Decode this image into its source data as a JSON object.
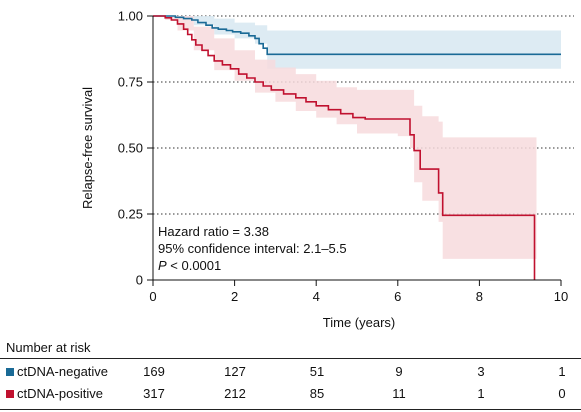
{
  "chart_data": {
    "type": "line",
    "subtype": "kaplan-meier step curves with confidence bands",
    "xlabel": "Time (years)",
    "ylabel": "Relapse-free survival",
    "xlim": [
      0,
      10
    ],
    "ylim": [
      0,
      1
    ],
    "x_ticks": [
      "0",
      "2",
      "4",
      "6",
      "8",
      "10"
    ],
    "y_ticks": [
      "0",
      "0.25",
      "0.50",
      "0.75",
      "1.00"
    ],
    "grid": "horizontal dotted",
    "annotation": {
      "line1": "Hazard ratio = 3.38",
      "line2": "95% confidence interval: 2.1–5.5",
      "line3_italic": "P",
      "line3_rest": " < 0.0001"
    },
    "series": [
      {
        "name": "ctDNA-negative",
        "color": "#1a6a96",
        "band_color": "#d7e8f1",
        "points": [
          [
            0,
            1.0
          ],
          [
            0.55,
            1.0
          ],
          [
            0.55,
            0.995
          ],
          [
            0.75,
            0.995
          ],
          [
            0.75,
            0.99
          ],
          [
            0.95,
            0.99
          ],
          [
            0.95,
            0.985
          ],
          [
            1.1,
            0.985
          ],
          [
            1.1,
            0.975
          ],
          [
            1.3,
            0.975
          ],
          [
            1.3,
            0.965
          ],
          [
            1.45,
            0.965
          ],
          [
            1.45,
            0.955
          ],
          [
            1.6,
            0.955
          ],
          [
            1.6,
            0.95
          ],
          [
            1.8,
            0.95
          ],
          [
            1.8,
            0.945
          ],
          [
            1.95,
            0.945
          ],
          [
            1.95,
            0.94
          ],
          [
            2.15,
            0.94
          ],
          [
            2.15,
            0.935
          ],
          [
            2.35,
            0.935
          ],
          [
            2.35,
            0.925
          ],
          [
            2.5,
            0.925
          ],
          [
            2.5,
            0.915
          ],
          [
            2.6,
            0.915
          ],
          [
            2.6,
            0.895
          ],
          [
            2.7,
            0.895
          ],
          [
            2.7,
            0.878
          ],
          [
            2.8,
            0.878
          ],
          [
            2.8,
            0.855
          ],
          [
            10.0,
            0.855
          ]
        ],
        "ci_upper": [
          [
            0,
            1.0
          ],
          [
            1.0,
            1.0
          ],
          [
            1.5,
            0.99
          ],
          [
            2.0,
            0.975
          ],
          [
            2.5,
            0.965
          ],
          [
            2.8,
            0.945
          ],
          [
            10.0,
            0.945
          ]
        ],
        "ci_lower": [
          [
            0,
            1.0
          ],
          [
            0.6,
            0.99
          ],
          [
            1.0,
            0.965
          ],
          [
            1.5,
            0.93
          ],
          [
            2.0,
            0.915
          ],
          [
            2.5,
            0.895
          ],
          [
            2.8,
            0.8
          ],
          [
            10.0,
            0.8
          ]
        ]
      },
      {
        "name": "ctDNA-positive",
        "color": "#c0112f",
        "band_color": "#f7dadd",
        "points": [
          [
            0,
            1.0
          ],
          [
            0.3,
            1.0
          ],
          [
            0.3,
            0.993
          ],
          [
            0.45,
            0.993
          ],
          [
            0.45,
            0.985
          ],
          [
            0.6,
            0.985
          ],
          [
            0.6,
            0.97
          ],
          [
            0.75,
            0.97
          ],
          [
            0.75,
            0.95
          ],
          [
            0.85,
            0.95
          ],
          [
            0.85,
            0.93
          ],
          [
            0.95,
            0.93
          ],
          [
            0.95,
            0.91
          ],
          [
            1.05,
            0.91
          ],
          [
            1.05,
            0.89
          ],
          [
            1.2,
            0.89
          ],
          [
            1.2,
            0.87
          ],
          [
            1.35,
            0.87
          ],
          [
            1.35,
            0.85
          ],
          [
            1.5,
            0.85
          ],
          [
            1.5,
            0.83
          ],
          [
            1.7,
            0.83
          ],
          [
            1.7,
            0.815
          ],
          [
            1.9,
            0.815
          ],
          [
            1.9,
            0.8
          ],
          [
            2.1,
            0.8
          ],
          [
            2.1,
            0.78
          ],
          [
            2.3,
            0.78
          ],
          [
            2.3,
            0.765
          ],
          [
            2.5,
            0.765
          ],
          [
            2.5,
            0.75
          ],
          [
            2.7,
            0.75
          ],
          [
            2.7,
            0.735
          ],
          [
            2.9,
            0.735
          ],
          [
            2.9,
            0.72
          ],
          [
            3.2,
            0.72
          ],
          [
            3.2,
            0.705
          ],
          [
            3.5,
            0.705
          ],
          [
            3.5,
            0.69
          ],
          [
            3.75,
            0.69
          ],
          [
            3.75,
            0.675
          ],
          [
            4.0,
            0.675
          ],
          [
            4.0,
            0.66
          ],
          [
            4.3,
            0.66
          ],
          [
            4.3,
            0.645
          ],
          [
            4.6,
            0.645
          ],
          [
            4.6,
            0.63
          ],
          [
            4.9,
            0.63
          ],
          [
            4.9,
            0.615
          ],
          [
            5.2,
            0.615
          ],
          [
            5.2,
            0.61
          ],
          [
            6.3,
            0.61
          ],
          [
            6.3,
            0.55
          ],
          [
            6.4,
            0.55
          ],
          [
            6.4,
            0.49
          ],
          [
            6.55,
            0.49
          ],
          [
            6.55,
            0.42
          ],
          [
            7.0,
            0.42
          ],
          [
            7.0,
            0.33
          ],
          [
            7.1,
            0.33
          ],
          [
            7.1,
            0.245
          ],
          [
            9.35,
            0.245
          ],
          [
            9.35,
            0.0
          ]
        ],
        "ci_upper": [
          [
            0,
            1.0
          ],
          [
            0.6,
            1.0
          ],
          [
            1.0,
            0.96
          ],
          [
            1.5,
            0.915
          ],
          [
            2.0,
            0.87
          ],
          [
            2.5,
            0.835
          ],
          [
            3.0,
            0.805
          ],
          [
            3.5,
            0.78
          ],
          [
            4.0,
            0.755
          ],
          [
            4.5,
            0.73
          ],
          [
            5.0,
            0.72
          ],
          [
            6.3,
            0.72
          ],
          [
            6.4,
            0.66
          ],
          [
            6.6,
            0.62
          ],
          [
            7.0,
            0.6
          ],
          [
            7.1,
            0.6
          ],
          [
            7.1,
            0.54
          ],
          [
            9.4,
            0.54
          ]
        ],
        "ci_lower": [
          [
            0,
            1.0
          ],
          [
            0.3,
            0.985
          ],
          [
            0.6,
            0.945
          ],
          [
            1.0,
            0.87
          ],
          [
            1.5,
            0.795
          ],
          [
            2.0,
            0.755
          ],
          [
            2.5,
            0.71
          ],
          [
            3.0,
            0.675
          ],
          [
            3.5,
            0.64
          ],
          [
            4.0,
            0.615
          ],
          [
            4.5,
            0.59
          ],
          [
            5.0,
            0.555
          ],
          [
            6.0,
            0.545
          ],
          [
            6.3,
            0.5
          ],
          [
            6.4,
            0.37
          ],
          [
            6.6,
            0.3
          ],
          [
            7.0,
            0.22
          ],
          [
            7.1,
            0.08
          ],
          [
            9.4,
            0.08
          ]
        ]
      }
    ]
  },
  "risk_table": {
    "title": "Number at risk",
    "rows": [
      {
        "label": "ctDNA-negative",
        "color": "#1a6a96",
        "values": [
          "169",
          "127",
          "51",
          "9",
          "3",
          "1"
        ]
      },
      {
        "label": "ctDNA-positive",
        "color": "#c0112f",
        "values": [
          "317",
          "212",
          "85",
          "11",
          "1",
          "0"
        ]
      }
    ]
  }
}
